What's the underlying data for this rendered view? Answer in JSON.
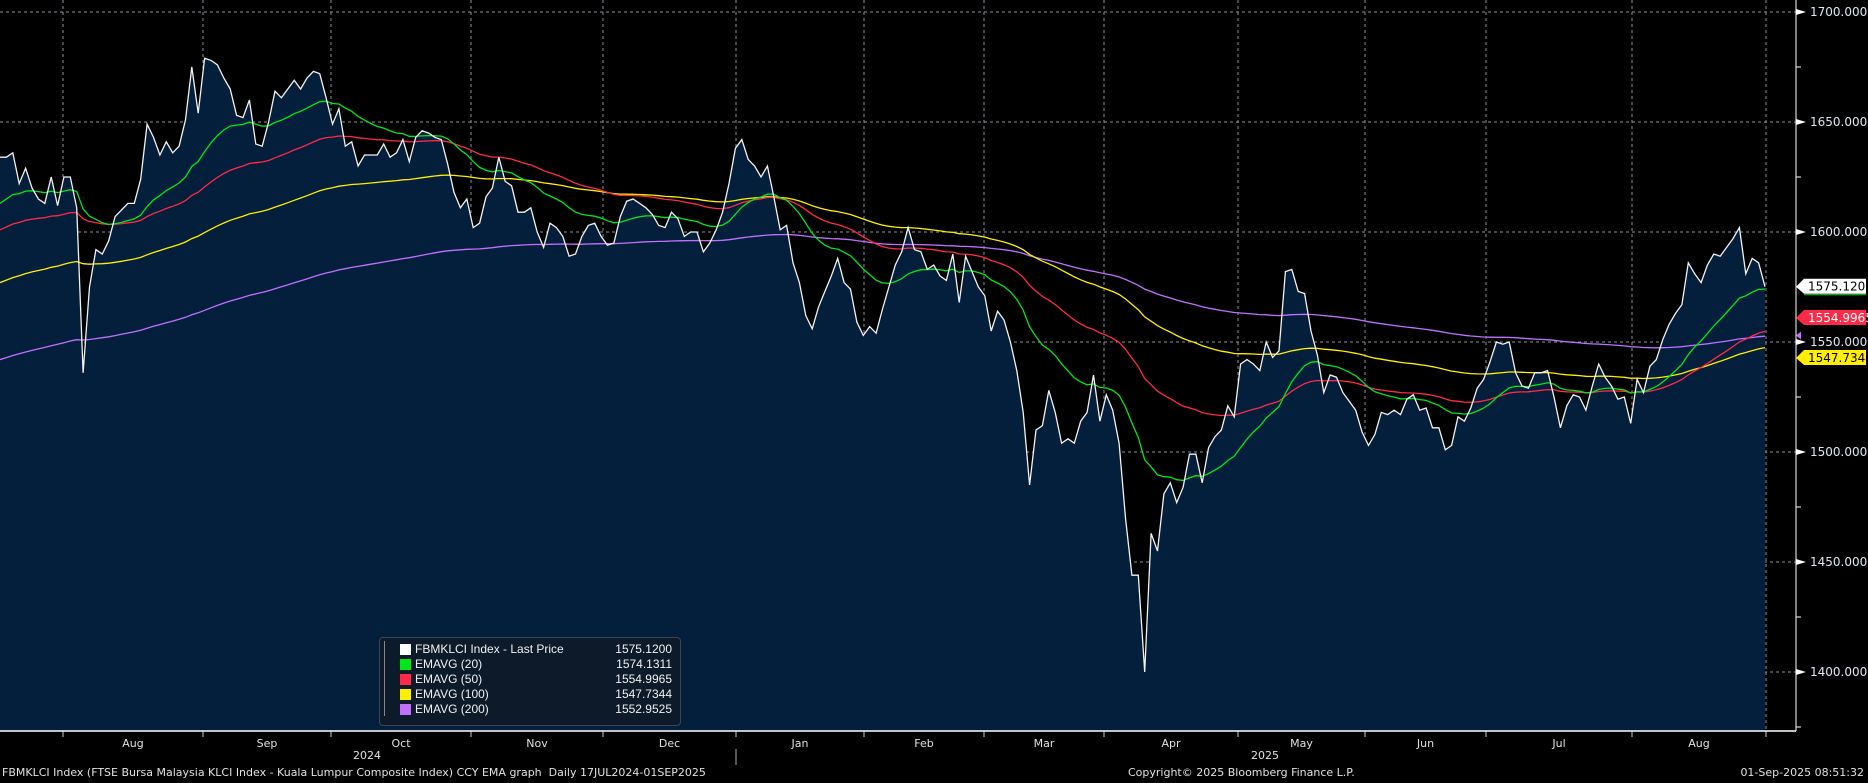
{
  "chart_data": {
    "type": "line",
    "title": "FBMKLCI Index (FTSE Bursa Malaysia KLCI Index - Kuala Lumpur Composite Index) CCY EMA graph  Daily 17JUL2024-01SEP2025",
    "ylim": [
      1378,
      1705
    ],
    "y_ticks": [
      "1700.0000",
      "1650.0000",
      "1600.0000",
      "1550.0000",
      "1500.0000",
      "1450.0000",
      "1400.0000"
    ],
    "y_tick_values": [
      1700,
      1650,
      1600,
      1550,
      1500,
      1450,
      1400
    ],
    "x_month_labels": [
      "Aug",
      "Sep",
      "Oct",
      "Nov",
      "Dec",
      "Jan",
      "Feb",
      "Mar",
      "Apr",
      "May",
      "Jun",
      "Jul",
      "Aug"
    ],
    "x_year_labels": [
      "2024",
      "2025"
    ],
    "grid": true,
    "legend_position": "bottom-left",
    "price": [
      1634,
      1634,
      1636,
      1622,
      1629,
      1620,
      1615,
      1613,
      1625,
      1612,
      1625,
      1625,
      1611,
      1536,
      1575,
      1592,
      1590,
      1596,
      1607,
      1610,
      1613,
      1613,
      1624,
      1649,
      1643,
      1635,
      1641,
      1636,
      1639,
      1651,
      1675,
      1654,
      1679,
      1678,
      1676,
      1670,
      1665,
      1653,
      1652,
      1660,
      1640,
      1639,
      1650,
      1664,
      1661,
      1665,
      1669,
      1665,
      1670,
      1673,
      1672,
      1661,
      1649,
      1656,
      1639,
      1641,
      1630,
      1635,
      1635,
      1635,
      1640,
      1634,
      1636,
      1642,
      1632,
      1643,
      1646,
      1645,
      1643,
      1642,
      1631,
      1618,
      1611,
      1615,
      1602,
      1604,
      1616,
      1620,
      1634,
      1623,
      1621,
      1609,
      1609,
      1611,
      1600,
      1593,
      1604,
      1602,
      1598,
      1589,
      1590,
      1598,
      1603,
      1604,
      1598,
      1594,
      1595,
      1607,
      1614,
      1615,
      1613,
      1611,
      1608,
      1603,
      1602,
      1609,
      1606,
      1598,
      1600,
      1600,
      1591,
      1595,
      1601,
      1609,
      1622,
      1638,
      1642,
      1633,
      1630,
      1625,
      1630,
      1616,
      1601,
      1603,
      1586,
      1577,
      1562,
      1556,
      1566,
      1573,
      1580,
      1588,
      1577,
      1574,
      1559,
      1553,
      1557,
      1554,
      1565,
      1575,
      1585,
      1591,
      1602,
      1592,
      1591,
      1583,
      1585,
      1580,
      1578,
      1590,
      1568,
      1589,
      1582,
      1575,
      1571,
      1555,
      1564,
      1560,
      1550,
      1537,
      1518,
      1485,
      1510,
      1512,
      1528,
      1518,
      1504,
      1506,
      1504,
      1514,
      1518,
      1535,
      1514,
      1526,
      1519,
      1504,
      1470,
      1444,
      1444,
      1400,
      1463,
      1455,
      1481,
      1486,
      1477,
      1484,
      1499,
      1499,
      1486,
      1502,
      1507,
      1510,
      1521,
      1516,
      1540,
      1542,
      1540,
      1537,
      1550,
      1543,
      1546,
      1582,
      1583,
      1573,
      1572,
      1555,
      1544,
      1527,
      1535,
      1534,
      1527,
      1523,
      1519,
      1509,
      1503,
      1508,
      1518,
      1517,
      1519,
      1517,
      1524,
      1526,
      1519,
      1520,
      1511,
      1511,
      1501,
      1503,
      1516,
      1514,
      1520,
      1529,
      1533,
      1541,
      1550,
      1549,
      1550,
      1536,
      1530,
      1529,
      1536,
      1536,
      1537,
      1525,
      1511,
      1521,
      1526,
      1525,
      1519,
      1530,
      1540,
      1534,
      1530,
      1524,
      1525,
      1513,
      1533,
      1527,
      1539,
      1542,
      1551,
      1558,
      1563,
      1567,
      1586,
      1581,
      1577,
      1585,
      1590,
      1589,
      1593,
      1597,
      1602,
      1581,
      1588,
      1586,
      1575.12
    ],
    "series": [
      {
        "name": "FBMKLCI Index - Last Price",
        "last": "1575.1200",
        "color": "#ffffff"
      },
      {
        "name": "EMAVG (20)",
        "period": 20,
        "seed": 1613,
        "last": "1574.1311",
        "color": "#00e61a"
      },
      {
        "name": "EMAVG (50)",
        "period": 50,
        "seed": 1601,
        "last": "1554.9965",
        "color": "#ff2a48"
      },
      {
        "name": "EMAVG (100)",
        "period": 100,
        "seed": 1577,
        "last": "1547.7344",
        "color": "#ffee00"
      },
      {
        "name": "EMAVG (200)",
        "period": 200,
        "seed": 1542,
        "last": "1552.9525",
        "color": "#c070ff"
      }
    ]
  },
  "footer": {
    "description": "FBMKLCI Index (FTSE Bursa Malaysia KLCI Index - Kuala Lumpur Composite Index) CCY EMA graph  Daily 17JUL2024-01SEP2025",
    "copyright": "Copyright© 2025 Bloomberg Finance L.P.",
    "timestamp": "01-Sep-2025 08:51:32"
  },
  "colors": {
    "area": "#041f3c",
    "background": "#000000",
    "grid": "#8a8f99"
  }
}
